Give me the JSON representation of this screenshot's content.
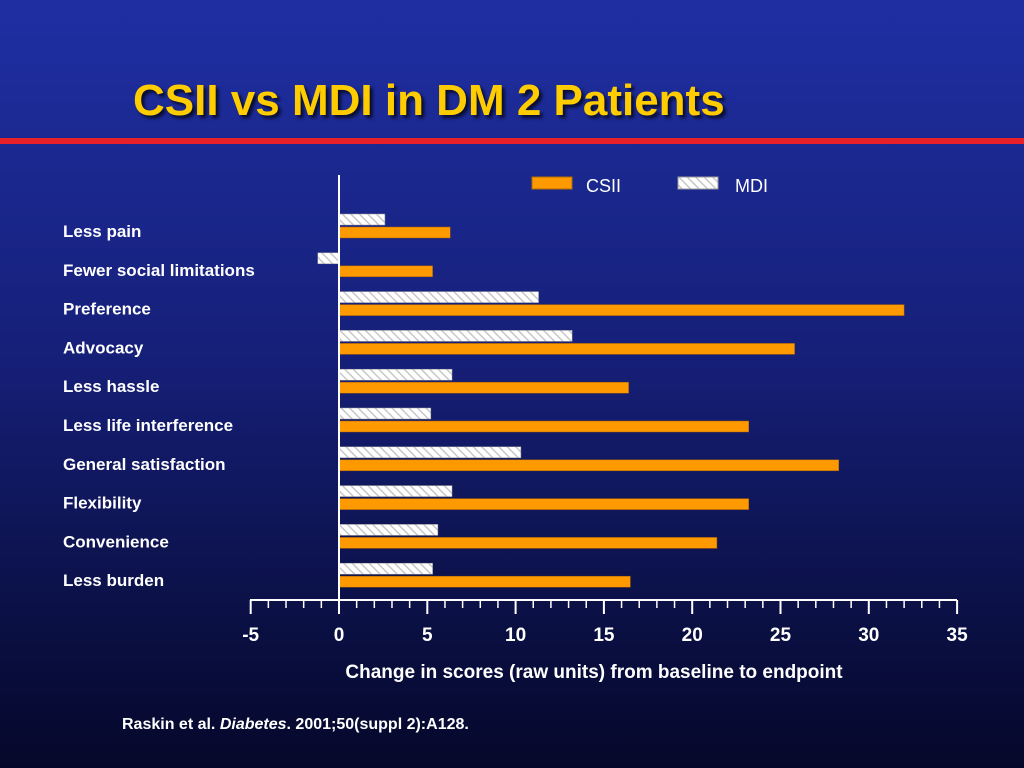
{
  "slide": {
    "title": "CSII vs MDI in DM 2 Patients",
    "citation_prefix": "Raskin et al. ",
    "citation_journal": "Diabetes",
    "citation_suffix": ". 2001;50(suppl 2):A128."
  },
  "colors": {
    "title": "#ffcc00",
    "rule": "#e8202a",
    "csii": "#ff9900",
    "mdi_hatch": "#c8c8c8"
  },
  "chart_data": {
    "type": "bar",
    "orientation": "horizontal",
    "title": "",
    "xlabel": "Change in scores (raw units) from baseline to endpoint",
    "ylabel": "",
    "xlim": [
      -5,
      35
    ],
    "xticks": [
      -5,
      0,
      5,
      10,
      15,
      20,
      25,
      30,
      35
    ],
    "grid": false,
    "legend_position": "top-right",
    "categories": [
      "Less pain",
      "Fewer social limitations",
      "Preference",
      "Advocacy",
      "Less hassle",
      "Less life interference",
      "General satisfaction",
      "Flexibility",
      "Convenience",
      "Less burden"
    ],
    "series": [
      {
        "name": "CSII",
        "values": [
          6.3,
          5.3,
          32.0,
          25.8,
          16.4,
          23.2,
          28.3,
          23.2,
          21.4,
          16.5
        ]
      },
      {
        "name": "MDI",
        "values": [
          2.6,
          -1.2,
          11.3,
          13.2,
          6.4,
          5.2,
          10.3,
          6.4,
          5.6,
          5.3
        ]
      }
    ]
  }
}
